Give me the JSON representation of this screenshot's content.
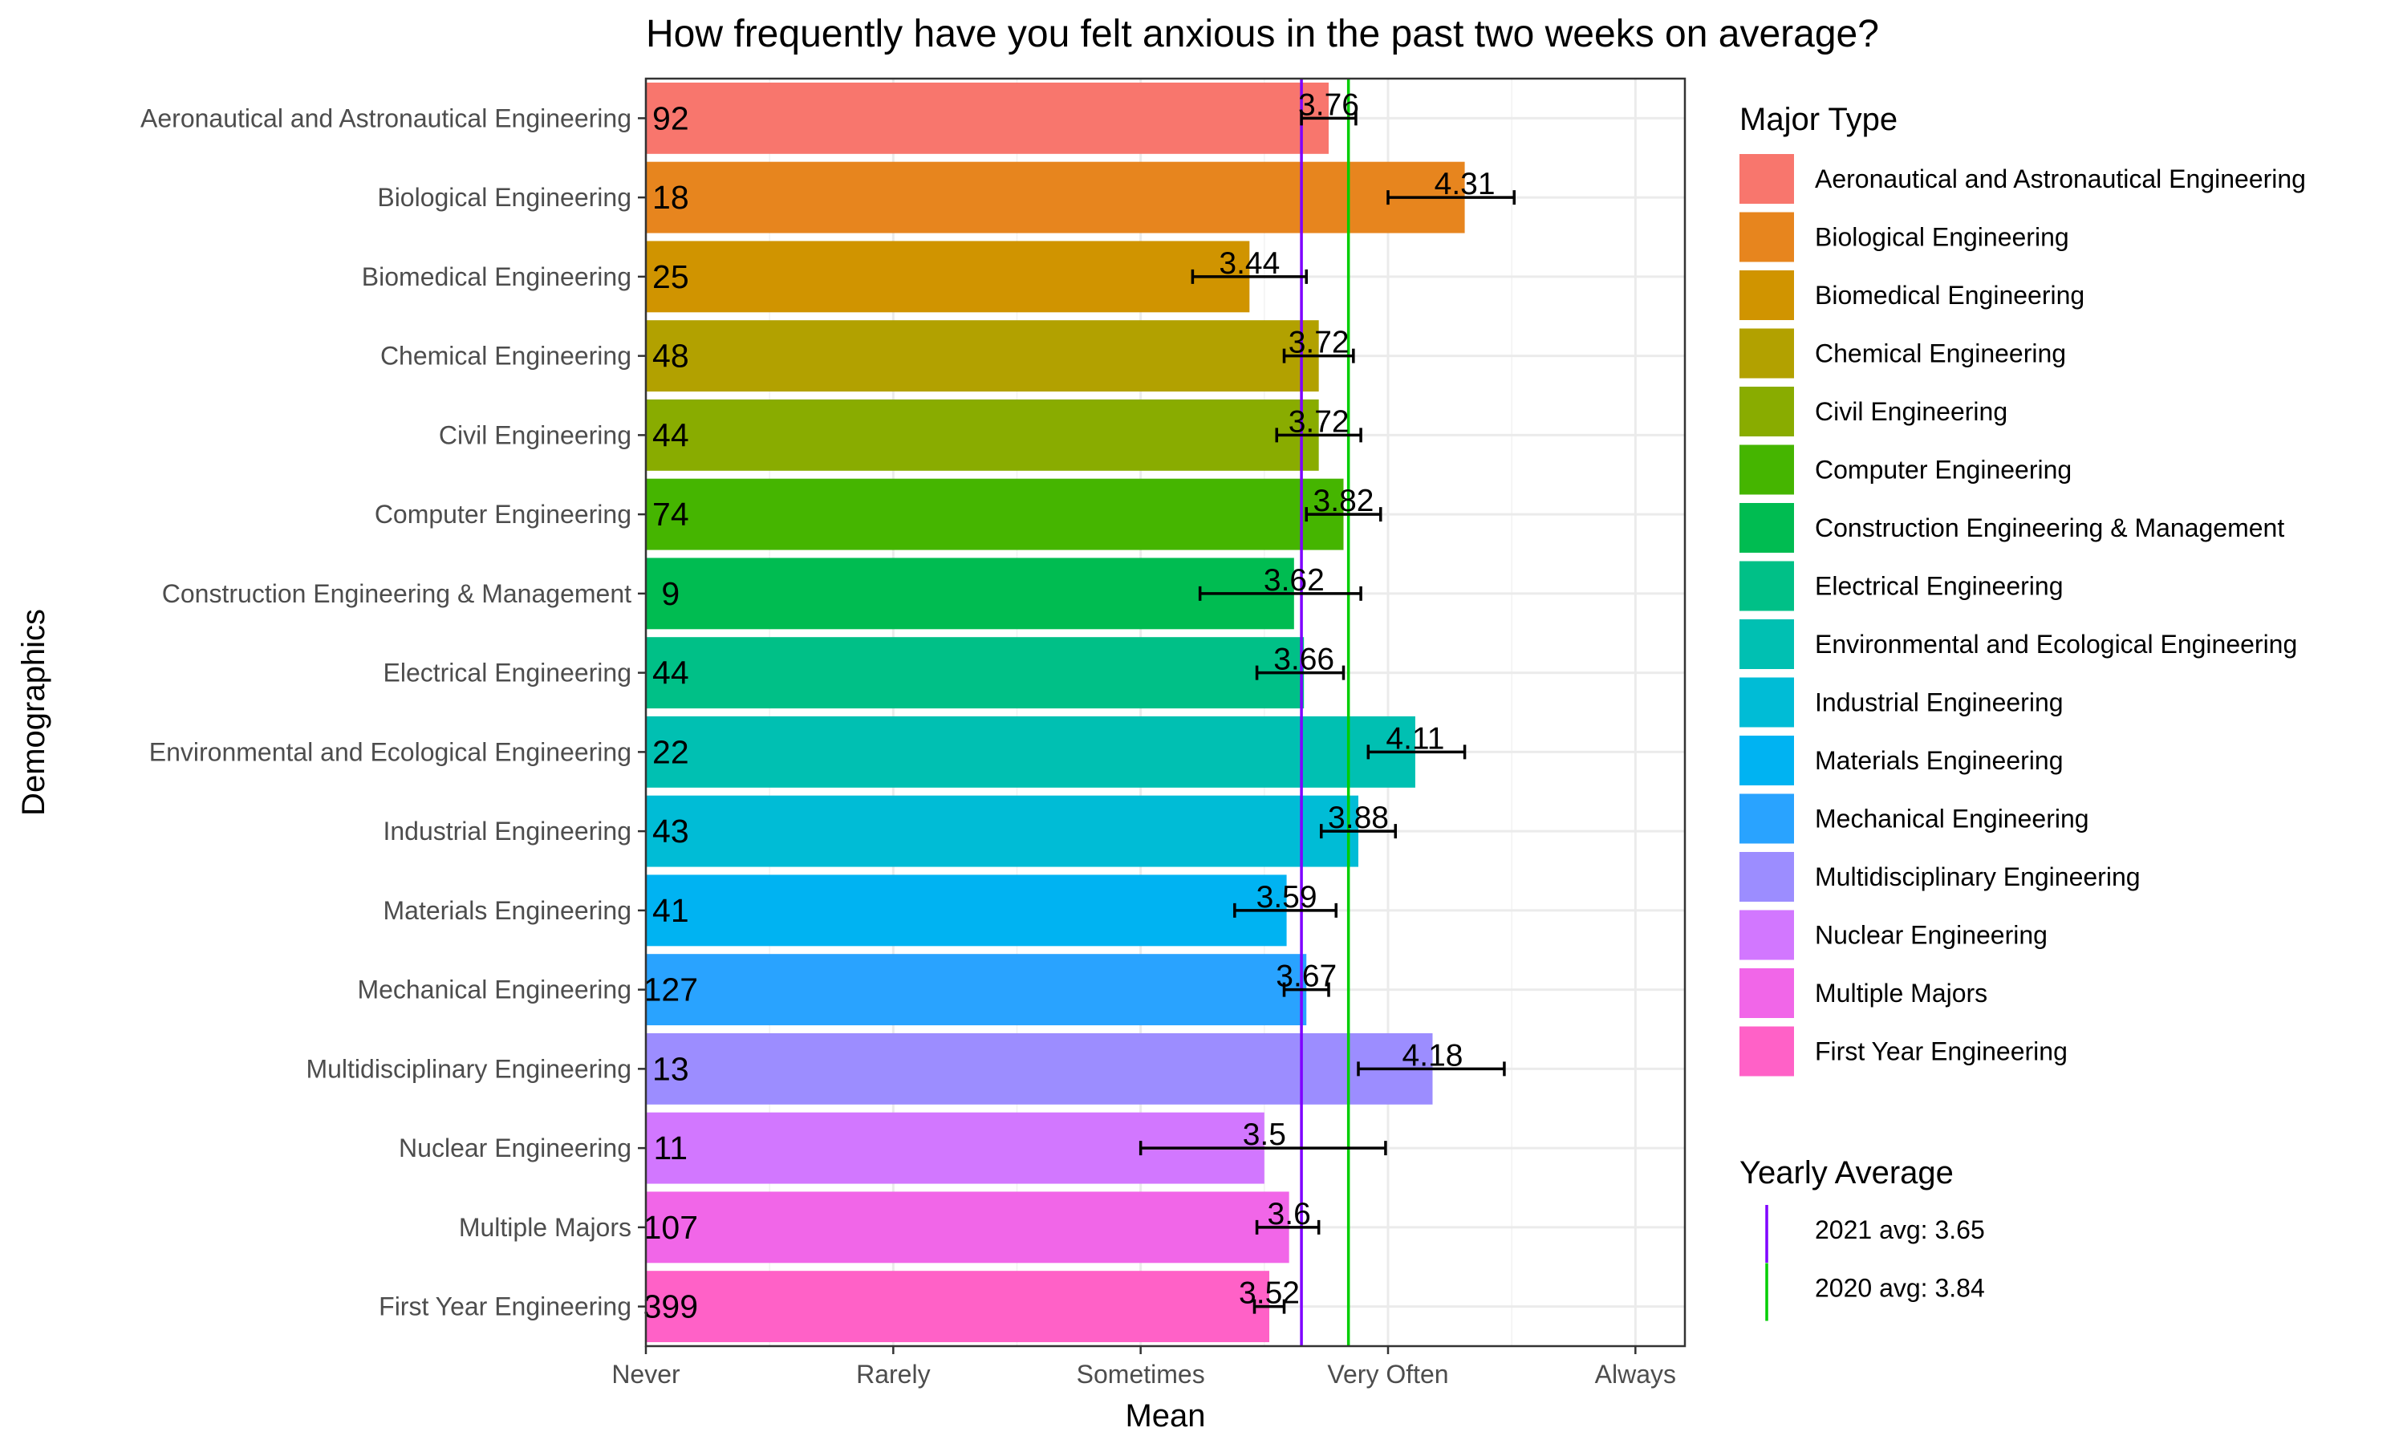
{
  "chart_data": {
    "type": "bar",
    "orientation": "horizontal",
    "title": "How frequently have you felt anxious in the past two weeks on average?",
    "xlabel": "Mean",
    "ylabel": "Demographics",
    "xlim": [
      1,
      5.2
    ],
    "x_ticks": [
      1,
      2,
      3,
      4,
      5
    ],
    "x_tick_labels": [
      "Never",
      "Rarely",
      "Sometimes",
      "Very Often",
      "Always"
    ],
    "grid": true,
    "categories": [
      "Aeronautical and Astronautical Engineering",
      "Biological Engineering",
      "Biomedical Engineering",
      "Chemical Engineering",
      "Civil Engineering",
      "Computer Engineering",
      "Construction Engineering & Management",
      "Electrical Engineering",
      "Environmental and Ecological Engineering",
      "Industrial Engineering",
      "Materials Engineering",
      "Mechanical Engineering",
      "Multidisciplinary Engineering",
      "Nuclear Engineering",
      "Multiple Majors",
      "First Year Engineering"
    ],
    "values": [
      3.76,
      4.31,
      3.44,
      3.72,
      3.72,
      3.82,
      3.62,
      3.66,
      4.11,
      3.88,
      3.59,
      3.67,
      4.18,
      3.5,
      3.6,
      3.52
    ],
    "value_labels": [
      "3.76",
      "4.31",
      "3.44",
      "3.72",
      "3.72",
      "3.82",
      "3.62",
      "3.66",
      "4.11",
      "3.88",
      "3.59",
      "3.67",
      "4.18",
      "3.5",
      "3.6",
      "3.52"
    ],
    "counts": [
      "92",
      "18",
      "25",
      "48",
      "44",
      "74",
      "9",
      "44",
      "22",
      "43",
      "41",
      "127",
      "13",
      "11",
      "107",
      "399"
    ],
    "error_low": [
      3.65,
      4.0,
      3.21,
      3.58,
      3.55,
      3.67,
      3.24,
      3.47,
      3.92,
      3.73,
      3.38,
      3.58,
      3.88,
      3.0,
      3.47,
      3.46
    ],
    "error_high": [
      3.87,
      4.51,
      3.67,
      3.86,
      3.89,
      3.97,
      3.89,
      3.82,
      4.31,
      4.03,
      3.79,
      3.76,
      4.47,
      3.99,
      3.72,
      3.58
    ],
    "colors": [
      "#F8766D",
      "#E7851E",
      "#D09400",
      "#B2A100",
      "#89AC00",
      "#45B500",
      "#00BC51",
      "#00C087",
      "#00C0B2",
      "#00BCD6",
      "#00B3F2",
      "#29A3FF",
      "#9C8DFF",
      "#D277FF",
      "#F166E8",
      "#FF61C7"
    ],
    "reference_lines": [
      {
        "name": "2021 avg: 3.65",
        "value": 3.65,
        "color": "#7F00FF"
      },
      {
        "name": "2020 avg: 3.84",
        "value": 3.84,
        "color": "#00CD00"
      }
    ],
    "legend_title": "Major Type",
    "legend_placement": "right",
    "ref_legend_title": "Yearly Average"
  }
}
